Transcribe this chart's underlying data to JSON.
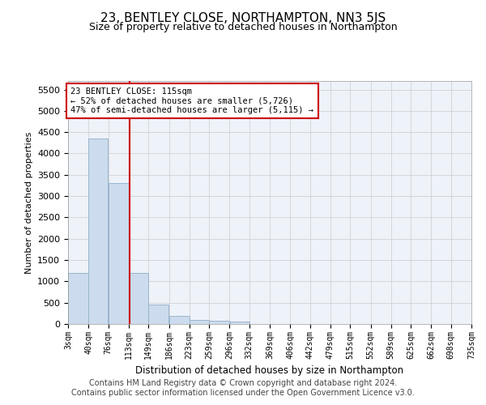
{
  "title": "23, BENTLEY CLOSE, NORTHAMPTON, NN3 5JS",
  "subtitle": "Size of property relative to detached houses in Northampton",
  "xlabel": "Distribution of detached houses by size in Northampton",
  "ylabel": "Number of detached properties",
  "bar_color": "#ccdcee",
  "bar_edge_color": "#9ab5cc",
  "property_line_color": "#cc0000",
  "property_size": 115,
  "annotation_text": "23 BENTLEY CLOSE: 115sqm\n← 52% of detached houses are smaller (5,726)\n47% of semi-detached houses are larger (5,115) →",
  "annotation_box_color": "white",
  "annotation_box_edge_color": "#cc0000",
  "bins": [
    3,
    40,
    76,
    113,
    149,
    186,
    223,
    259,
    296,
    332,
    369,
    406,
    442,
    479,
    515,
    552,
    589,
    625,
    662,
    698,
    735
  ],
  "bin_labels": [
    "3sqm",
    "40sqm",
    "76sqm",
    "113sqm",
    "149sqm",
    "186sqm",
    "223sqm",
    "259sqm",
    "296sqm",
    "332sqm",
    "369sqm",
    "406sqm",
    "442sqm",
    "479sqm",
    "515sqm",
    "552sqm",
    "589sqm",
    "625sqm",
    "662sqm",
    "698sqm",
    "735sqm"
  ],
  "bar_heights": [
    1200,
    4350,
    3300,
    1200,
    450,
    190,
    90,
    70,
    60,
    0,
    0,
    0,
    0,
    0,
    0,
    0,
    0,
    0,
    0,
    0
  ],
  "ylim": [
    0,
    5700
  ],
  "yticks": [
    0,
    500,
    1000,
    1500,
    2000,
    2500,
    3000,
    3500,
    4000,
    4500,
    5000,
    5500
  ],
  "grid_color": "#cccccc",
  "background_color": "#eef2f9",
  "footer": "Contains HM Land Registry data © Crown copyright and database right 2024.\nContains public sector information licensed under the Open Government Licence v3.0.",
  "title_fontsize": 11,
  "subtitle_fontsize": 9,
  "footer_fontsize": 7
}
